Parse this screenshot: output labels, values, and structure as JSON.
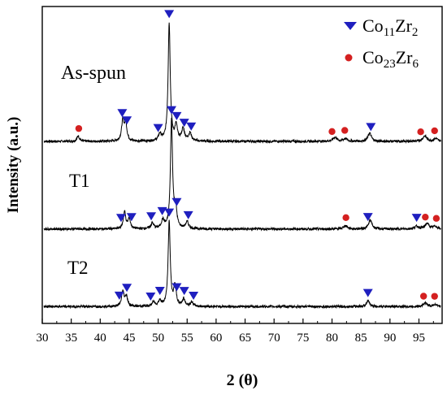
{
  "chart_data": {
    "type": "line",
    "xlabel": "2 (θ)",
    "ylabel": "Intensity (a.u.)",
    "xlim": [
      30,
      99
    ],
    "x_ticks": [
      30,
      35,
      40,
      45,
      50,
      55,
      60,
      65,
      70,
      75,
      80,
      85,
      90,
      95
    ],
    "y_ticks_shown": false,
    "grid": false,
    "legend": {
      "position": "top-right",
      "entries": [
        {
          "symbol": "triangle-down",
          "color": "#1f1fbf",
          "name_parts": [
            {
              "t": "Co",
              "sub": false
            },
            {
              "t": "11",
              "sub": true
            },
            {
              "t": "Zr",
              "sub": false
            },
            {
              "t": "2",
              "sub": true
            }
          ]
        },
        {
          "symbol": "circle",
          "color": "#d42020",
          "name_parts": [
            {
              "t": "Co",
              "sub": false
            },
            {
              "t": "23",
              "sub": true
            },
            {
              "t": "Zr",
              "sub": false
            },
            {
              "t": "6",
              "sub": true
            }
          ]
        }
      ]
    },
    "series": [
      {
        "name": "As-spun",
        "baseline": 2.7,
        "peaks": [
          {
            "x": 36.2,
            "h": 0.08,
            "w": 0.25
          },
          {
            "x": 43.9,
            "h": 0.3,
            "w": 0.25
          },
          {
            "x": 44.4,
            "h": 0.25,
            "w": 0.25
          },
          {
            "x": 50.3,
            "h": 0.1,
            "w": 0.3
          },
          {
            "x": 51.9,
            "h": 1.75,
            "w": 0.22
          },
          {
            "x": 53.1,
            "h": 0.22,
            "w": 0.25
          },
          {
            "x": 54.3,
            "h": 0.18,
            "w": 0.3
          },
          {
            "x": 55.5,
            "h": 0.12,
            "w": 0.3
          },
          {
            "x": 80.5,
            "h": 0.06,
            "w": 0.4
          },
          {
            "x": 82.3,
            "h": 0.04,
            "w": 0.4
          },
          {
            "x": 86.5,
            "h": 0.12,
            "w": 0.35
          },
          {
            "x": 96.0,
            "h": 0.08,
            "w": 0.4
          },
          {
            "x": 97.9,
            "h": 0.04,
            "w": 0.4
          }
        ],
        "markers": [
          {
            "symbol": "circle",
            "x": 36.3
          },
          {
            "symbol": "triangle-down",
            "x": 43.8
          },
          {
            "symbol": "triangle-down",
            "x": 44.6
          },
          {
            "symbol": "triangle-down",
            "x": 50.0
          },
          {
            "symbol": "triangle-down",
            "x": 51.9
          },
          {
            "symbol": "triangle-down",
            "x": 53.2
          },
          {
            "symbol": "triangle-down",
            "x": 54.5
          },
          {
            "symbol": "triangle-down",
            "x": 55.7
          },
          {
            "symbol": "circle",
            "x": 80.0
          },
          {
            "symbol": "circle",
            "x": 82.2
          },
          {
            "symbol": "triangle-down",
            "x": 86.7
          },
          {
            "symbol": "circle",
            "x": 95.3
          },
          {
            "symbol": "circle",
            "x": 97.7
          }
        ]
      },
      {
        "name": "T1",
        "baseline": 1.4,
        "peaks": [
          {
            "x": 44.2,
            "h": 0.25,
            "w": 0.25
          },
          {
            "x": 45.0,
            "h": 0.15,
            "w": 0.25
          },
          {
            "x": 49.0,
            "h": 0.08,
            "w": 0.3
          },
          {
            "x": 50.8,
            "h": 0.12,
            "w": 0.3
          },
          {
            "x": 52.3,
            "h": 1.6,
            "w": 0.22
          },
          {
            "x": 53.0,
            "h": 0.3,
            "w": 0.25
          },
          {
            "x": 55.0,
            "h": 0.1,
            "w": 0.3
          },
          {
            "x": 82.3,
            "h": 0.05,
            "w": 0.4
          },
          {
            "x": 86.6,
            "h": 0.13,
            "w": 0.35
          },
          {
            "x": 94.6,
            "h": 0.04,
            "w": 0.4
          },
          {
            "x": 96.4,
            "h": 0.08,
            "w": 0.4
          },
          {
            "x": 97.8,
            "h": 0.04,
            "w": 0.4
          }
        ],
        "markers": [
          {
            "symbol": "triangle-down",
            "x": 43.6
          },
          {
            "symbol": "triangle-down",
            "x": 45.4
          },
          {
            "symbol": "triangle-down",
            "x": 48.8
          },
          {
            "symbol": "triangle-down",
            "x": 50.7
          },
          {
            "symbol": "triangle-down",
            "x": 52.3
          },
          {
            "symbol": "triangle-down",
            "x": 53.2
          },
          {
            "symbol": "triangle-down",
            "x": 55.2
          },
          {
            "symbol": "circle",
            "x": 82.4
          },
          {
            "symbol": "triangle-down",
            "x": 86.2
          },
          {
            "symbol": "triangle-down",
            "x": 94.6
          },
          {
            "symbol": "circle",
            "x": 96.1
          },
          {
            "symbol": "circle",
            "x": 98.0
          }
        ]
      },
      {
        "name": "T2",
        "baseline": 0.25,
        "peaks": [
          {
            "x": 43.9,
            "h": 0.22,
            "w": 0.25
          },
          {
            "x": 44.5,
            "h": 0.15,
            "w": 0.25
          },
          {
            "x": 49.2,
            "h": 0.06,
            "w": 0.3
          },
          {
            "x": 50.3,
            "h": 0.08,
            "w": 0.3
          },
          {
            "x": 51.9,
            "h": 1.25,
            "w": 0.22
          },
          {
            "x": 52.9,
            "h": 0.3,
            "w": 0.25
          },
          {
            "x": 54.4,
            "h": 0.1,
            "w": 0.3
          },
          {
            "x": 55.8,
            "h": 0.06,
            "w": 0.3
          },
          {
            "x": 86.2,
            "h": 0.08,
            "w": 0.35
          },
          {
            "x": 96.1,
            "h": 0.05,
            "w": 0.4
          },
          {
            "x": 97.8,
            "h": 0.03,
            "w": 0.4
          }
        ],
        "markers": [
          {
            "symbol": "triangle-down",
            "x": 43.3
          },
          {
            "symbol": "triangle-down",
            "x": 44.6
          },
          {
            "symbol": "triangle-down",
            "x": 48.7
          },
          {
            "symbol": "triangle-down",
            "x": 50.3
          },
          {
            "symbol": "triangle-down",
            "x": 51.9
          },
          {
            "symbol": "triangle-down",
            "x": 53.2
          },
          {
            "symbol": "triangle-down",
            "x": 54.5
          },
          {
            "symbol": "triangle-down",
            "x": 56.1
          },
          {
            "symbol": "triangle-down",
            "x": 86.2
          },
          {
            "symbol": "circle",
            "x": 95.8
          },
          {
            "symbol": "circle",
            "x": 97.7
          }
        ]
      }
    ]
  }
}
